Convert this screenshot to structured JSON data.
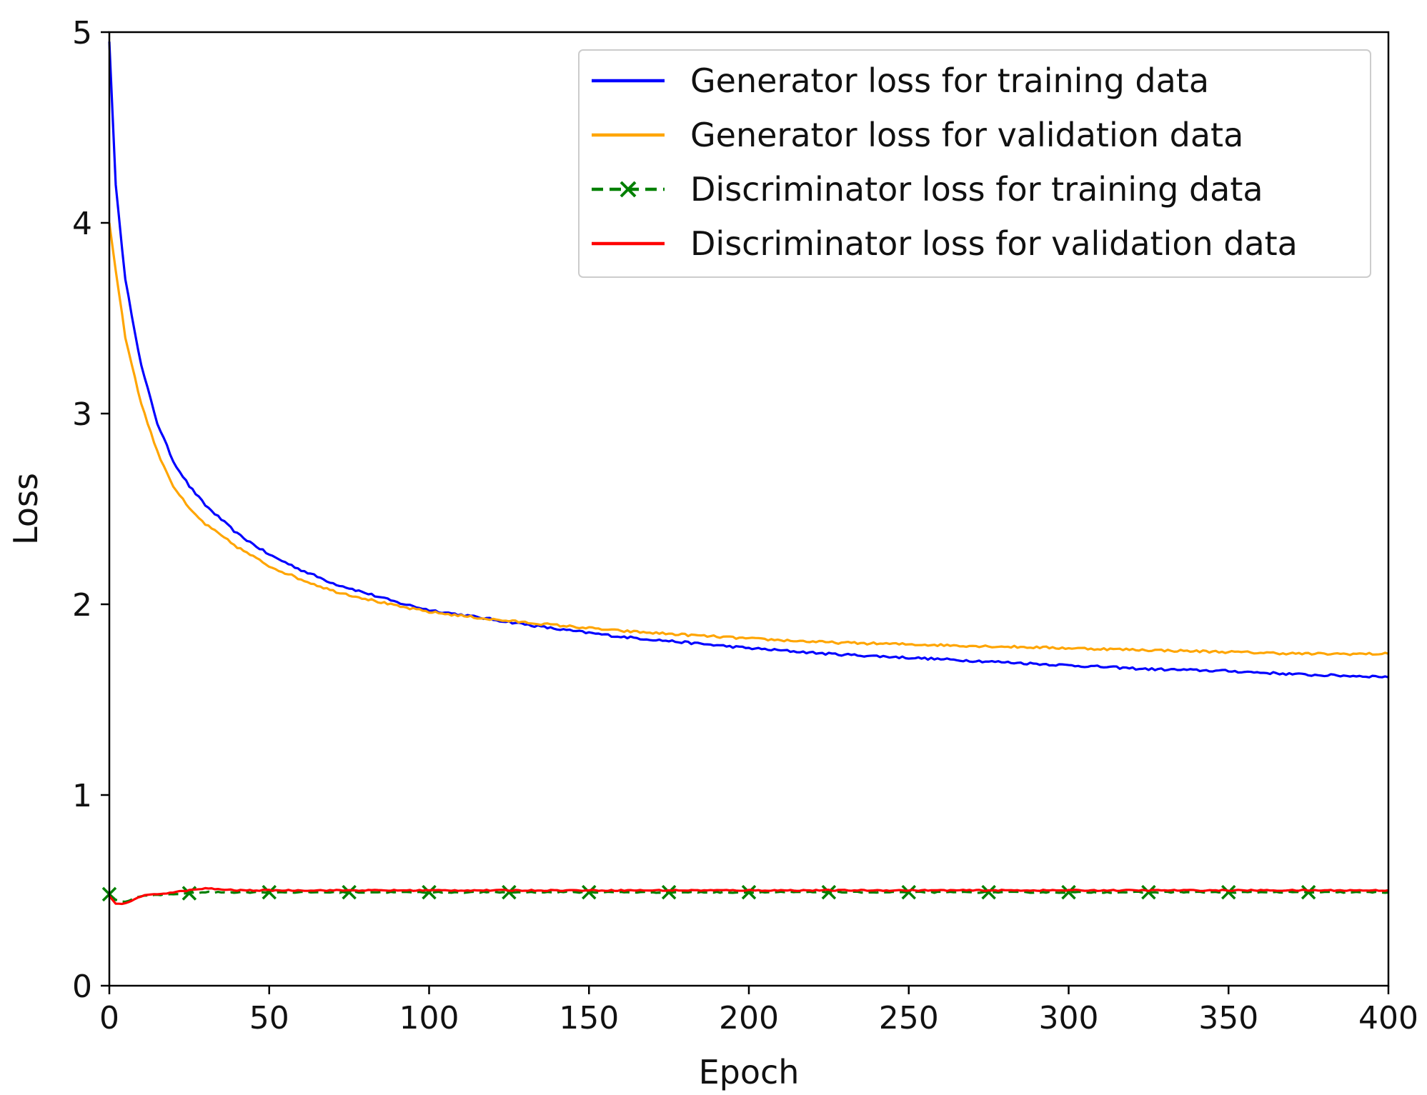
{
  "chart_data": {
    "type": "line",
    "title": "",
    "xlabel": "Epoch",
    "ylabel": "Loss",
    "xlim": [
      0,
      400
    ],
    "ylim": [
      0,
      5
    ],
    "xticks": [
      0,
      50,
      100,
      150,
      200,
      250,
      300,
      350,
      400
    ],
    "yticks": [
      0,
      1,
      2,
      3,
      4,
      5
    ],
    "grid": false,
    "legend_position": "top-right",
    "series": [
      {
        "name": "Generator loss for training data",
        "color": "#0000ff",
        "style": "solid",
        "points": [
          [
            0,
            4.95
          ],
          [
            2,
            4.2
          ],
          [
            5,
            3.7
          ],
          [
            10,
            3.25
          ],
          [
            15,
            2.95
          ],
          [
            20,
            2.75
          ],
          [
            25,
            2.62
          ],
          [
            30,
            2.52
          ],
          [
            40,
            2.37
          ],
          [
            50,
            2.26
          ],
          [
            60,
            2.18
          ],
          [
            70,
            2.11
          ],
          [
            80,
            2.06
          ],
          [
            90,
            2.01
          ],
          [
            100,
            1.97
          ],
          [
            120,
            1.92
          ],
          [
            140,
            1.87
          ],
          [
            160,
            1.83
          ],
          [
            180,
            1.8
          ],
          [
            200,
            1.77
          ],
          [
            225,
            1.74
          ],
          [
            250,
            1.72
          ],
          [
            275,
            1.7
          ],
          [
            300,
            1.68
          ],
          [
            325,
            1.66
          ],
          [
            350,
            1.65
          ],
          [
            375,
            1.63
          ],
          [
            400,
            1.62
          ]
        ]
      },
      {
        "name": "Generator loss for validation data",
        "color": "#ffa500",
        "style": "solid",
        "points": [
          [
            0,
            4.0
          ],
          [
            2,
            3.75
          ],
          [
            5,
            3.4
          ],
          [
            10,
            3.05
          ],
          [
            15,
            2.8
          ],
          [
            20,
            2.62
          ],
          [
            25,
            2.5
          ],
          [
            30,
            2.42
          ],
          [
            40,
            2.3
          ],
          [
            50,
            2.2
          ],
          [
            60,
            2.13
          ],
          [
            70,
            2.07
          ],
          [
            80,
            2.03
          ],
          [
            90,
            1.99
          ],
          [
            100,
            1.96
          ],
          [
            120,
            1.92
          ],
          [
            140,
            1.89
          ],
          [
            160,
            1.86
          ],
          [
            180,
            1.84
          ],
          [
            200,
            1.82
          ],
          [
            225,
            1.8
          ],
          [
            250,
            1.79
          ],
          [
            275,
            1.78
          ],
          [
            300,
            1.77
          ],
          [
            325,
            1.76
          ],
          [
            350,
            1.75
          ],
          [
            375,
            1.74
          ],
          [
            400,
            1.74
          ]
        ]
      },
      {
        "name": "Discriminator loss for training data",
        "color": "#008000",
        "style": "dashed",
        "marker": "x",
        "markers_at": [
          0,
          25,
          50,
          75,
          100,
          125,
          150,
          175,
          200,
          225,
          250,
          275,
          300,
          325,
          350,
          375
        ],
        "points": [
          [
            0,
            0.48
          ],
          [
            2,
            0.45
          ],
          [
            5,
            0.44
          ],
          [
            10,
            0.47
          ],
          [
            20,
            0.48
          ],
          [
            30,
            0.49
          ],
          [
            50,
            0.49
          ],
          [
            100,
            0.49
          ],
          [
            150,
            0.49
          ],
          [
            200,
            0.49
          ],
          [
            250,
            0.49
          ],
          [
            300,
            0.49
          ],
          [
            350,
            0.49
          ],
          [
            400,
            0.49
          ]
        ]
      },
      {
        "name": "Discriminator loss for validation data",
        "color": "#ff0000",
        "style": "solid",
        "points": [
          [
            0,
            0.47
          ],
          [
            2,
            0.43
          ],
          [
            5,
            0.43
          ],
          [
            10,
            0.47
          ],
          [
            20,
            0.49
          ],
          [
            30,
            0.51
          ],
          [
            40,
            0.5
          ],
          [
            50,
            0.5
          ],
          [
            100,
            0.5
          ],
          [
            150,
            0.5
          ],
          [
            200,
            0.5
          ],
          [
            250,
            0.5
          ],
          [
            300,
            0.5
          ],
          [
            350,
            0.5
          ],
          [
            400,
            0.5
          ]
        ]
      }
    ]
  }
}
